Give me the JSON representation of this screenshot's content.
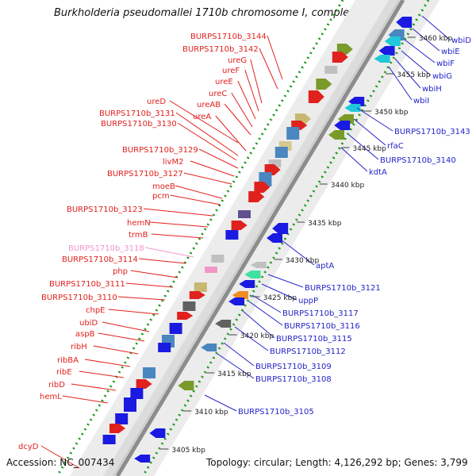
{
  "title": "Burkholderia pseudomallei 1710b chromosome I, complete seque...",
  "footer": {
    "accession": "Accession: NC_007434",
    "summary": "Topology: circular; Length: 4,126,292 bp; Genes: 3,799"
  },
  "colors": {
    "reverse_label": "#e0211d",
    "forward_label": "#2323c8",
    "pseudo_label": "#f098c8",
    "ruler_label": "#222222",
    "backbone": "#8c8c8c",
    "dotted_ring": "#1a9a1a"
  },
  "ruler_ticks": [
    "3405 kbp",
    "3410 kbp",
    "3415 kbp",
    "3420 kbp",
    "3425 kbp",
    "3430 kbp",
    "3435 kbp",
    "3440 kbp",
    "3445 kbp",
    "3450 kbp",
    "3455 kbp",
    "3460 kbp"
  ],
  "reverse_strand_genes": [
    {
      "label": "BURPS1710b_3144"
    },
    {
      "label": "BURPS1710b_3142"
    },
    {
      "label": "ureG"
    },
    {
      "label": "ureF"
    },
    {
      "label": "ureE"
    },
    {
      "label": "ureC"
    },
    {
      "label": "ureAB"
    },
    {
      "label": "ureD"
    },
    {
      "label": "ureA"
    },
    {
      "label": "BURPS1710b_3131"
    },
    {
      "label": "BURPS1710b_3130"
    },
    {
      "label": "BURPS1710b_3129"
    },
    {
      "label": "livM2"
    },
    {
      "label": "BURPS1710b_3127"
    },
    {
      "label": "moeB"
    },
    {
      "label": "pcm"
    },
    {
      "label": "BURPS1710b_3123"
    },
    {
      "label": "hemN"
    },
    {
      "label": "trmB"
    },
    {
      "label": "BURPS1710b_3118",
      "pseudo": true
    },
    {
      "label": "BURPS1710b_3114"
    },
    {
      "label": "php"
    },
    {
      "label": "BURPS1710b_3111"
    },
    {
      "label": "BURPS1710b_3110"
    },
    {
      "label": "chpE"
    },
    {
      "label": "ubiD"
    },
    {
      "label": "aspB"
    },
    {
      "label": "ribH"
    },
    {
      "label": "ribBA"
    },
    {
      "label": "ribE"
    },
    {
      "label": "ribD"
    },
    {
      "label": "hemL"
    },
    {
      "label": "dcyD"
    }
  ],
  "forward_strand_genes": [
    {
      "label": "wbiD"
    },
    {
      "label": "wbiE"
    },
    {
      "label": "wbiF"
    },
    {
      "label": "wbiG"
    },
    {
      "label": "wbiH"
    },
    {
      "label": "wbiI"
    },
    {
      "label": "BURPS1710b_3143"
    },
    {
      "label": "rfaC"
    },
    {
      "label": "BURPS1710b_3140"
    },
    {
      "label": "kdtA"
    },
    {
      "label": "aptA"
    },
    {
      "label": "BURPS1710b_3121"
    },
    {
      "label": "uppP"
    },
    {
      "label": "BURPS1710b_3117"
    },
    {
      "label": "BURPS1710b_3116"
    },
    {
      "label": "BURPS1710b_3115"
    },
    {
      "label": "BURPS1710b_3112"
    },
    {
      "label": "BURPS1710b_3109"
    },
    {
      "label": "BURPS1710b_3108"
    },
    {
      "label": "BURPS1710b_3105"
    }
  ]
}
